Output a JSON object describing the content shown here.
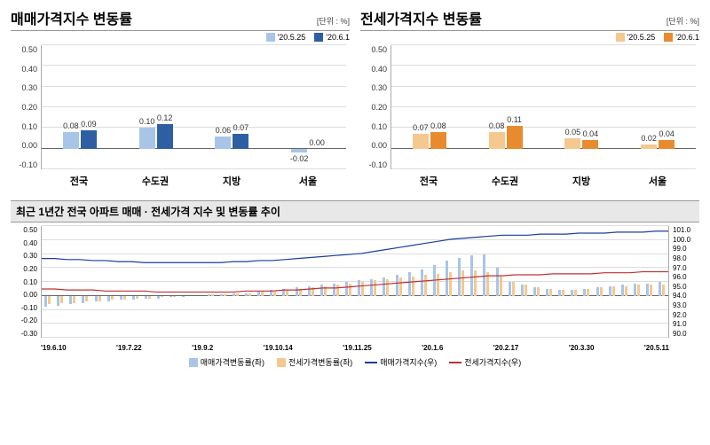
{
  "colors": {
    "blue_light": "#a8c5e8",
    "blue_dark": "#2e5fa3",
    "orange_light": "#f5c88f",
    "orange_dark": "#e88b2e",
    "line_blue": "#1a3d9e",
    "line_red": "#c03030",
    "grid": "#dddddd",
    "axis": "#666666"
  },
  "left_chart": {
    "title": "매매가격지수 변동률",
    "unit": "[단위 : %]",
    "legend": [
      "'20.5.25",
      "'20.6.1"
    ],
    "ylim": [
      -0.1,
      0.5
    ],
    "yticks": [
      "0.50",
      "0.40",
      "0.30",
      "0.20",
      "0.10",
      "0.00",
      "-0.10"
    ],
    "categories": [
      "전국",
      "수도권",
      "지방",
      "서울"
    ],
    "series1": [
      0.08,
      0.1,
      0.06,
      -0.02
    ],
    "series2": [
      0.09,
      0.12,
      0.07,
      0.0
    ],
    "labels1": [
      "0.08",
      "0.10",
      "0.06",
      "-0.02"
    ],
    "labels2": [
      "0.09",
      "0.12",
      "0.07",
      "0.00"
    ]
  },
  "right_chart": {
    "title": "전세가격지수 변동률",
    "unit": "[단위 : %]",
    "legend": [
      "'20.5.25",
      "'20.6.1"
    ],
    "ylim": [
      -0.1,
      0.5
    ],
    "yticks": [
      "0.50",
      "0.40",
      "0.30",
      "0.20",
      "0.10",
      "0.00",
      "-0.10"
    ],
    "categories": [
      "전국",
      "수도권",
      "지방",
      "서울"
    ],
    "series1": [
      0.07,
      0.08,
      0.05,
      0.02
    ],
    "series2": [
      0.08,
      0.11,
      0.04,
      0.04
    ],
    "labels1": [
      "0.07",
      "0.08",
      "0.05",
      "0.02"
    ],
    "labels2": [
      "0.08",
      "0.11",
      "0.04",
      "0.04"
    ]
  },
  "bottom_chart": {
    "title": "최근 1년간 전국 아파트 매매 · 전세가격 지수 및 변동률 추이",
    "left_ylim": [
      -0.3,
      0.5
    ],
    "left_yticks": [
      "0.50",
      "0.40",
      "0.30",
      "0.20",
      "0.10",
      "0.00",
      "-0.10",
      "-0.20",
      "-0.30"
    ],
    "right_ylim": [
      90.0,
      101.0
    ],
    "right_yticks": [
      "101.0",
      "100.0",
      "99.0",
      "98.0",
      "97.0",
      "96.0",
      "95.0",
      "94.0",
      "93.0",
      "92.0",
      "91.0",
      "90.0"
    ],
    "x_labels": [
      "'19.6.10",
      "'19.7.22",
      "'19.9.2",
      "'19.10.14",
      "'19.11.25",
      "'20.1.6",
      "'20.2.17",
      "'20.3.30",
      "'20.5.11"
    ],
    "legend": [
      "매매가격변동률(좌)",
      "전세가격변동률(좌)",
      "매매가격지수(우)",
      "전세가격지수(우)"
    ],
    "bars_blue": [
      -0.08,
      -0.07,
      -0.06,
      -0.05,
      -0.04,
      -0.04,
      -0.03,
      -0.03,
      -0.02,
      -0.02,
      -0.01,
      -0.01,
      0.0,
      0.01,
      0.01,
      0.02,
      0.02,
      0.03,
      0.04,
      0.05,
      0.06,
      0.07,
      0.08,
      0.09,
      0.1,
      0.11,
      0.12,
      0.13,
      0.15,
      0.17,
      0.19,
      0.22,
      0.25,
      0.27,
      0.29,
      0.3,
      0.2,
      0.1,
      0.08,
      0.06,
      0.05,
      0.04,
      0.04,
      0.05,
      0.06,
      0.07,
      0.08,
      0.09,
      0.09,
      0.1
    ],
    "bars_orange": [
      -0.06,
      -0.05,
      -0.05,
      -0.04,
      -0.04,
      -0.03,
      -0.03,
      -0.02,
      -0.02,
      -0.01,
      -0.01,
      0.0,
      0.0,
      0.01,
      0.01,
      0.02,
      0.02,
      0.03,
      0.03,
      0.04,
      0.05,
      0.06,
      0.07,
      0.08,
      0.09,
      0.1,
      0.11,
      0.12,
      0.13,
      0.14,
      0.15,
      0.16,
      0.17,
      0.18,
      0.18,
      0.17,
      0.14,
      0.1,
      0.08,
      0.06,
      0.05,
      0.04,
      0.04,
      0.05,
      0.06,
      0.07,
      0.07,
      0.08,
      0.08,
      0.08
    ],
    "line_blue_y": [
      97.8,
      97.8,
      97.7,
      97.7,
      97.6,
      97.6,
      97.5,
      97.5,
      97.4,
      97.4,
      97.4,
      97.4,
      97.4,
      97.4,
      97.4,
      97.5,
      97.5,
      97.6,
      97.6,
      97.7,
      97.8,
      97.9,
      98.0,
      98.1,
      98.2,
      98.3,
      98.5,
      98.7,
      98.9,
      99.1,
      99.3,
      99.5,
      99.7,
      99.8,
      99.9,
      100.0,
      100.1,
      100.1,
      100.1,
      100.2,
      100.2,
      100.2,
      100.3,
      100.3,
      100.3,
      100.4,
      100.4,
      100.4,
      100.5,
      100.5
    ],
    "line_red_y": [
      94.8,
      94.8,
      94.7,
      94.7,
      94.7,
      94.6,
      94.6,
      94.6,
      94.6,
      94.5,
      94.5,
      94.5,
      94.5,
      94.5,
      94.5,
      94.5,
      94.6,
      94.6,
      94.6,
      94.7,
      94.7,
      94.8,
      94.9,
      94.9,
      95.0,
      95.1,
      95.2,
      95.3,
      95.4,
      95.5,
      95.6,
      95.7,
      95.8,
      95.9,
      96.0,
      96.1,
      96.1,
      96.2,
      96.2,
      96.2,
      96.3,
      96.3,
      96.3,
      96.3,
      96.4,
      96.4,
      96.4,
      96.5,
      96.5,
      96.5
    ]
  }
}
